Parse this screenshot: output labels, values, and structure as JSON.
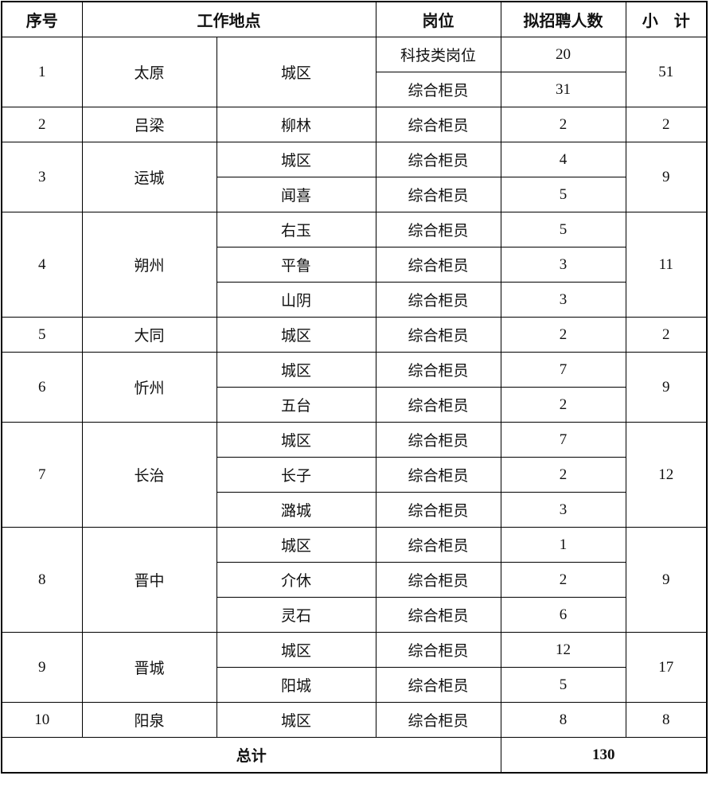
{
  "header": {
    "seq": "序号",
    "location": "工作地点",
    "position": "岗位",
    "count": "拟招聘人数",
    "subtotal": "小　计"
  },
  "groups": [
    {
      "seq": "1",
      "city": "太原",
      "subtotal": "51",
      "sites": [
        {
          "name": "城区",
          "jobs": [
            {
              "position": "科技类岗位",
              "count": "20"
            },
            {
              "position": "综合柜员",
              "count": "31"
            }
          ]
        }
      ]
    },
    {
      "seq": "2",
      "city": "吕梁",
      "subtotal": "2",
      "sites": [
        {
          "name": "柳林",
          "jobs": [
            {
              "position": "综合柜员",
              "count": "2"
            }
          ]
        }
      ]
    },
    {
      "seq": "3",
      "city": "运城",
      "subtotal": "9",
      "sites": [
        {
          "name": "城区",
          "jobs": [
            {
              "position": "综合柜员",
              "count": "4"
            }
          ]
        },
        {
          "name": "闻喜",
          "jobs": [
            {
              "position": "综合柜员",
              "count": "5"
            }
          ]
        }
      ]
    },
    {
      "seq": "4",
      "city": "朔州",
      "subtotal": "11",
      "sites": [
        {
          "name": "右玉",
          "jobs": [
            {
              "position": "综合柜员",
              "count": "5"
            }
          ]
        },
        {
          "name": "平鲁",
          "jobs": [
            {
              "position": "综合柜员",
              "count": "3"
            }
          ]
        },
        {
          "name": "山阴",
          "jobs": [
            {
              "position": "综合柜员",
              "count": "3"
            }
          ]
        }
      ]
    },
    {
      "seq": "5",
      "city": "大同",
      "subtotal": "2",
      "sites": [
        {
          "name": "城区",
          "jobs": [
            {
              "position": "综合柜员",
              "count": "2"
            }
          ]
        }
      ]
    },
    {
      "seq": "6",
      "city": "忻州",
      "subtotal": "9",
      "sites": [
        {
          "name": "城区",
          "jobs": [
            {
              "position": "综合柜员",
              "count": "7"
            }
          ]
        },
        {
          "name": "五台",
          "jobs": [
            {
              "position": "综合柜员",
              "count": "2"
            }
          ]
        }
      ]
    },
    {
      "seq": "7",
      "city": "长治",
      "subtotal": "12",
      "sites": [
        {
          "name": "城区",
          "jobs": [
            {
              "position": "综合柜员",
              "count": "7"
            }
          ]
        },
        {
          "name": "长子",
          "jobs": [
            {
              "position": "综合柜员",
              "count": "2"
            }
          ]
        },
        {
          "name": "潞城",
          "jobs": [
            {
              "position": "综合柜员",
              "count": "3"
            }
          ]
        }
      ]
    },
    {
      "seq": "8",
      "city": "晋中",
      "subtotal": "9",
      "sites": [
        {
          "name": "城区",
          "jobs": [
            {
              "position": "综合柜员",
              "count": "1"
            }
          ]
        },
        {
          "name": "介休",
          "jobs": [
            {
              "position": "综合柜员",
              "count": "2"
            }
          ]
        },
        {
          "name": "灵石",
          "jobs": [
            {
              "position": "综合柜员",
              "count": "6"
            }
          ]
        }
      ]
    },
    {
      "seq": "9",
      "city": "晋城",
      "subtotal": "17",
      "sites": [
        {
          "name": "城区",
          "jobs": [
            {
              "position": "综合柜员",
              "count": "12"
            }
          ]
        },
        {
          "name": "阳城",
          "jobs": [
            {
              "position": "综合柜员",
              "count": "5"
            }
          ]
        }
      ]
    },
    {
      "seq": "10",
      "city": "阳泉",
      "subtotal": "8",
      "sites": [
        {
          "name": "城区",
          "jobs": [
            {
              "position": "综合柜员",
              "count": "8"
            }
          ]
        }
      ]
    }
  ],
  "total": {
    "label": "总计",
    "value": "130"
  }
}
